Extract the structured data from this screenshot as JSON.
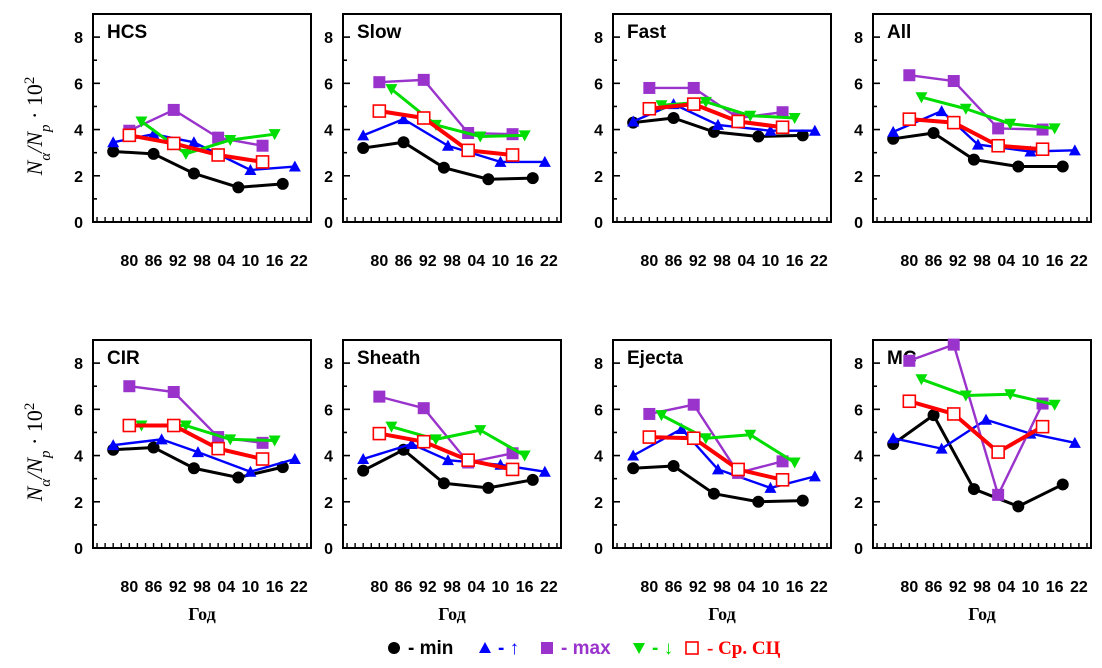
{
  "chart_data": {
    "type": "line",
    "ylabel": "Nα/Np · 10²",
    "ylabel_parts": {
      "n": "N",
      "alpha": "α",
      "slash": "/",
      "np": "N",
      "p": "p",
      "dot": " · 10",
      "exp": "2"
    },
    "xlabel": "Год",
    "ylim": [
      0,
      9
    ],
    "xlim": [
      1971,
      2025
    ],
    "x_tick_labels": [
      "80",
      "86",
      "92",
      "98",
      "04",
      "10",
      "16",
      "22"
    ],
    "x_tick_values": [
      1980,
      1986,
      1992,
      1998,
      2004,
      2010,
      2016,
      2022
    ],
    "y_tick_values": [
      0,
      2,
      4,
      6,
      8
    ],
    "grid": false,
    "legend_placement": "bottom-center",
    "series_styles": [
      {
        "key": "min",
        "color": "#000000",
        "marker": "circle"
      },
      {
        "key": "up",
        "color": "#0000ff",
        "marker": "triangle-up"
      },
      {
        "key": "max",
        "color": "#9933cc",
        "marker": "square"
      },
      {
        "key": "down",
        "color": "#00dd00",
        "marker": "triangle-down"
      },
      {
        "key": "avg",
        "color": "#ff0000",
        "marker": "square-open"
      }
    ],
    "legend": [
      {
        "key": "min",
        "label": "- min"
      },
      {
        "key": "up",
        "label": "- ↑"
      },
      {
        "key": "max",
        "label": "- max"
      },
      {
        "key": "down",
        "label": "- ↓"
      },
      {
        "key": "avg",
        "label": "- Ср. СЦ"
      }
    ],
    "panels": [
      {
        "title": "HCS",
        "show_xlabel": false,
        "series": {
          "min": {
            "x": [
              1976,
              1986,
              1996,
              2007,
              2018
            ],
            "y": [
              3.05,
              2.95,
              2.1,
              1.5,
              1.65
            ]
          },
          "up": {
            "x": [
              1976,
              1986,
              1996,
              2010,
              2021
            ],
            "y": [
              3.45,
              3.8,
              3.45,
              2.25,
              2.4
            ]
          },
          "max": {
            "x": [
              1980,
              1991,
              2002,
              2013
            ],
            "y": [
              3.95,
              4.85,
              3.65,
              3.3
            ]
          },
          "down": {
            "x": [
              1983,
              1994,
              2005,
              2016
            ],
            "y": [
              4.35,
              2.95,
              3.55,
              3.8
            ]
          },
          "avg": {
            "x": [
              1980,
              1991,
              2002,
              2013
            ],
            "y": [
              3.75,
              3.4,
              2.9,
              2.6
            ]
          }
        }
      },
      {
        "title": "Slow",
        "show_xlabel": false,
        "series": {
          "min": {
            "x": [
              1976,
              1986,
              1996,
              2007,
              2018
            ],
            "y": [
              3.2,
              3.45,
              2.35,
              1.85,
              1.9
            ]
          },
          "up": {
            "x": [
              1976,
              1986,
              1997,
              2010,
              2021
            ],
            "y": [
              3.75,
              4.45,
              3.3,
              2.6,
              2.6
            ]
          },
          "max": {
            "x": [
              1980,
              1991,
              2002,
              2013
            ],
            "y": [
              6.05,
              6.15,
              3.85,
              3.8
            ]
          },
          "down": {
            "x": [
              1983,
              1994,
              2005,
              2016
            ],
            "y": [
              5.75,
              4.2,
              3.7,
              3.75
            ]
          },
          "avg": {
            "x": [
              1980,
              1991,
              2002,
              2013
            ],
            "y": [
              4.8,
              4.5,
              3.1,
              2.9
            ]
          }
        }
      },
      {
        "title": "Fast",
        "show_xlabel": false,
        "series": {
          "min": {
            "x": [
              1976,
              1986,
              1996,
              2007,
              2018
            ],
            "y": [
              4.3,
              4.5,
              3.9,
              3.7,
              3.75
            ]
          },
          "up": {
            "x": [
              1976,
              1986,
              1997,
              2010,
              2021
            ],
            "y": [
              4.35,
              5.1,
              4.2,
              3.95,
              3.95
            ]
          },
          "max": {
            "x": [
              1980,
              1991,
              2002,
              2013
            ],
            "y": [
              5.8,
              5.8,
              4.5,
              4.75
            ]
          },
          "down": {
            "x": [
              1983,
              1994,
              2005,
              2016
            ],
            "y": [
              5.05,
              5.2,
              4.6,
              4.5
            ]
          },
          "avg": {
            "x": [
              1980,
              1991,
              2002,
              2013
            ],
            "y": [
              4.9,
              5.1,
              4.35,
              4.1
            ]
          }
        }
      },
      {
        "title": "All",
        "show_xlabel": false,
        "series": {
          "min": {
            "x": [
              1976,
              1986,
              1996,
              2007,
              2018
            ],
            "y": [
              3.6,
              3.85,
              2.7,
              2.4,
              2.4
            ]
          },
          "up": {
            "x": [
              1976,
              1988,
              1997,
              2010,
              2021
            ],
            "y": [
              3.9,
              4.8,
              3.35,
              3.05,
              3.1
            ]
          },
          "max": {
            "x": [
              1980,
              1991,
              2002,
              2013
            ],
            "y": [
              6.35,
              6.1,
              4.05,
              4.0
            ]
          },
          "down": {
            "x": [
              1983,
              1994,
              2005,
              2016
            ],
            "y": [
              5.4,
              4.9,
              4.25,
              4.05
            ]
          },
          "avg": {
            "x": [
              1980,
              1991,
              2002,
              2013
            ],
            "y": [
              4.45,
              4.3,
              3.3,
              3.15
            ]
          }
        }
      },
      {
        "title": "CIR",
        "show_xlabel": true,
        "series": {
          "min": {
            "x": [
              1976,
              1986,
              1996,
              2007,
              2018
            ],
            "y": [
              4.25,
              4.35,
              3.45,
              3.05,
              3.5
            ]
          },
          "up": {
            "x": [
              1976,
              1988,
              1997,
              2010,
              2021
            ],
            "y": [
              4.45,
              4.7,
              4.15,
              3.3,
              3.85
            ]
          },
          "max": {
            "x": [
              1980,
              1991,
              2002,
              2013
            ],
            "y": [
              7.0,
              6.75,
              4.8,
              4.55
            ]
          },
          "down": {
            "x": [
              1983,
              1994,
              2005,
              2016
            ],
            "y": [
              5.3,
              5.3,
              4.7,
              4.65
            ]
          },
          "avg": {
            "x": [
              1980,
              1991,
              2002,
              2013
            ],
            "y": [
              5.3,
              5.3,
              4.3,
              3.85
            ]
          }
        }
      },
      {
        "title": "Sheath",
        "show_xlabel": true,
        "series": {
          "min": {
            "x": [
              1976,
              1986,
              1996,
              2007,
              2018
            ],
            "y": [
              3.35,
              4.25,
              2.8,
              2.6,
              2.95
            ]
          },
          "up": {
            "x": [
              1976,
              1988,
              1997,
              2010,
              2021
            ],
            "y": [
              3.85,
              4.5,
              3.8,
              3.6,
              3.3
            ]
          },
          "max": {
            "x": [
              1980,
              1991,
              2002,
              2013
            ],
            "y": [
              6.55,
              6.05,
              3.7,
              4.1
            ]
          },
          "down": {
            "x": [
              1983,
              1994,
              2005,
              2016
            ],
            "y": [
              5.25,
              4.7,
              5.1,
              4.0
            ]
          },
          "avg": {
            "x": [
              1980,
              1991,
              2002,
              2013
            ],
            "y": [
              4.95,
              4.6,
              3.8,
              3.4
            ]
          }
        }
      },
      {
        "title": "Ejecta",
        "show_xlabel": true,
        "series": {
          "min": {
            "x": [
              1976,
              1986,
              1996,
              2007,
              2018
            ],
            "y": [
              3.45,
              3.55,
              2.35,
              2.0,
              2.05
            ]
          },
          "up": {
            "x": [
              1976,
              1988,
              1997,
              2010,
              2021
            ],
            "y": [
              4.0,
              5.15,
              3.4,
              2.6,
              3.1
            ]
          },
          "max": {
            "x": [
              1980,
              1991,
              2002,
              2013
            ],
            "y": [
              5.8,
              6.2,
              3.25,
              3.75
            ]
          },
          "down": {
            "x": [
              1983,
              1994,
              2005,
              2016
            ],
            "y": [
              5.75,
              4.75,
              4.9,
              3.7
            ]
          },
          "avg": {
            "x": [
              1980,
              1991,
              2002,
              2013
            ],
            "y": [
              4.8,
              4.75,
              3.4,
              2.95
            ]
          }
        }
      },
      {
        "title": "MC",
        "show_xlabel": true,
        "series": {
          "min": {
            "x": [
              1976,
              1986,
              1996,
              2007,
              2018
            ],
            "y": [
              4.5,
              5.75,
              2.55,
              1.8,
              2.75
            ]
          },
          "up": {
            "x": [
              1976,
              1988,
              1999,
              2010,
              2021
            ],
            "y": [
              4.75,
              4.3,
              5.55,
              4.95,
              4.55
            ]
          },
          "max": {
            "x": [
              1980,
              1991,
              2002,
              2013
            ],
            "y": [
              8.1,
              8.8,
              2.3,
              6.25
            ]
          },
          "down": {
            "x": [
              1983,
              1994,
              2005,
              2016
            ],
            "y": [
              7.3,
              6.6,
              6.65,
              6.2
            ]
          },
          "avg": {
            "x": [
              1980,
              1991,
              2002,
              2013
            ],
            "y": [
              6.35,
              5.8,
              4.15,
              5.25
            ]
          }
        }
      }
    ]
  }
}
